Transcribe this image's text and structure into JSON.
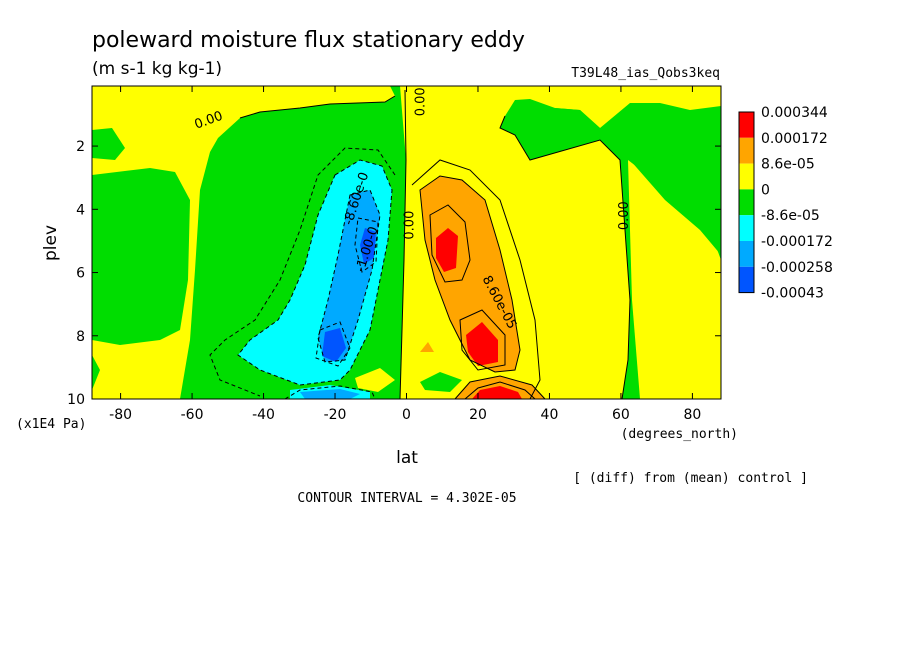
{
  "chart_data": {
    "type": "heatmap",
    "title": "poleward moisture flux stationary eddy",
    "units": "(m s-1 kg kg-1)",
    "run_label": "T39L48_ias_Qobs3keq",
    "xlabel": "lat",
    "xunits": "(degrees_north)",
    "ylabel": "plev",
    "yunits": "(x1E4 Pa)",
    "footnote": "[ (diff) from (mean) control ]",
    "contour_interval": "CONTOUR INTERVAL = 4.302E-05",
    "xlim": [
      -88,
      88
    ],
    "ylim": [
      10,
      0.1
    ],
    "x_ticks": [
      -80,
      -60,
      -40,
      -20,
      0,
      20,
      40,
      60,
      80
    ],
    "y_ticks": [
      2,
      4,
      6,
      8,
      10
    ],
    "legend": {
      "placement": "right",
      "labels": [
        "0.000344",
        "0.000172",
        "8.6e-05",
        "0",
        "-8.6e-05",
        "-0.000172",
        "-0.000258",
        "-0.00043"
      ],
      "colors": [
        "#ff0000",
        "#ffa500",
        "#ffff00",
        "#00dd00",
        "#00ffff",
        "#00aaff",
        "#0055ff"
      ]
    },
    "contour_labels": [
      {
        "text": "0.00",
        "lat": -55,
        "plev": 1.3
      },
      {
        "text": "0.00",
        "lat": 5,
        "plev": 0.6
      },
      {
        "text": "-8.60e-0",
        "lat": -13,
        "plev": 3.7
      },
      {
        "text": "-1.00-0",
        "lat": -10,
        "plev": 5.3
      },
      {
        "text": "0.00",
        "lat": 2,
        "plev": 4.5
      },
      {
        "text": "8.60e-05",
        "lat": 25,
        "plev": 7.0
      },
      {
        "text": "0.00",
        "lat": 62,
        "plev": 4.2
      }
    ]
  }
}
